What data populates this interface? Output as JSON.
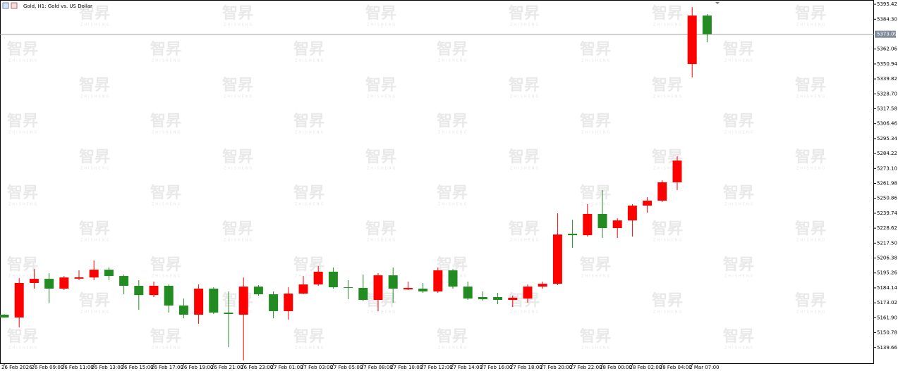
{
  "chart_data": {
    "type": "candlestick",
    "title": "Gold, H1:  Gold vs. US Dollar",
    "watermark": "智昇",
    "watermark_sub": "ZHISHENG",
    "categories": [
      "26 Feb 2026",
      null,
      "26 Feb 09:00",
      null,
      "26 Feb 11:00",
      null,
      "26 Feb 13:00",
      null,
      "26 Feb 15:00",
      null,
      "26 Feb 17:00",
      null,
      "26 Feb 19:00",
      null,
      "26 Feb 21:00",
      null,
      "26 Feb 23:00",
      null,
      "27 Feb 01:00",
      null,
      "27 Feb 03:00",
      null,
      "27 Feb 05:00",
      null,
      "27 Feb 08:00",
      null,
      "27 Feb 10:00",
      null,
      "27 Feb 12:00",
      null,
      "27 Feb 14:00",
      null,
      "27 Feb 16:00",
      null,
      "27 Feb 18:00",
      null,
      "27 Feb 20:00",
      null,
      "27 Feb 22:00",
      null,
      "28 Feb 00:00",
      null,
      "28 Feb 02:00",
      null,
      "28 Feb 04:00",
      null,
      "2 Mar 07:00",
      null
    ],
    "open": [
      5164.2,
      5162.1,
      5187.8,
      5190.9,
      5183.6,
      5191.0,
      5191.9,
      5197.7,
      5193.0,
      5185.7,
      5178.8,
      5185.7,
      5171.0,
      5164.2,
      5183.6,
      5165.7,
      5164.2,
      5185.1,
      5179.4,
      5166.8,
      5179.9,
      5186.7,
      5196.2,
      5184.6,
      5184.1,
      5175.2,
      5193.5,
      5183.0,
      5183.6,
      5181.5,
      5197.2,
      5185.1,
      5177.3,
      5177.3,
      5175.2,
      5176.2,
      5185.1,
      5187.2,
      5224.5,
      5223.4,
      5239.2,
      5228.7,
      5234.4,
      5245.4,
      5249.1,
      5262.8,
      5350.9,
      5387.0
    ],
    "high": [
      5164.5,
      5191.4,
      5198.2,
      5195.1,
      5193.0,
      5197.2,
      5204.6,
      5199.3,
      5194.1,
      5189.9,
      5188.8,
      5186.7,
      5176.2,
      5186.7,
      5184.6,
      5181.5,
      5191.9,
      5186.2,
      5181.5,
      5184.6,
      5193.0,
      5200.4,
      5199.3,
      5189.9,
      5194.1,
      5195.1,
      5199.3,
      5188.8,
      5187.8,
      5199.3,
      5198.2,
      5188.8,
      5181.5,
      5180.4,
      5178.3,
      5186.7,
      5188.8,
      5239.7,
      5234.9,
      5246.5,
      5257.0,
      5236.0,
      5246.5,
      5251.7,
      5264.3,
      5282.2,
      5393.3,
      5388.1
    ],
    "low": [
      5161.8,
      5154.7,
      5183.6,
      5173.1,
      5182.5,
      5189.9,
      5189.9,
      5189.9,
      5179.4,
      5167.8,
      5177.3,
      5165.7,
      5161.5,
      5157.3,
      5164.7,
      5140.0,
      5130.1,
      5178.3,
      5161.5,
      5160.5,
      5179.4,
      5185.7,
      5183.6,
      5175.7,
      5174.1,
      5166.8,
      5173.1,
      5182.5,
      5180.4,
      5180.4,
      5183.6,
      5175.2,
      5174.6,
      5172.0,
      5169.9,
      5173.1,
      5183.6,
      5186.2,
      5214.0,
      5222.4,
      5221.3,
      5221.3,
      5222.4,
      5240.2,
      5248.1,
      5257.0,
      5340.9,
      5367.1
    ],
    "close": [
      5162.1,
      5187.8,
      5190.9,
      5183.6,
      5191.9,
      5192.0,
      5197.7,
      5193.0,
      5185.7,
      5178.8,
      5185.7,
      5171.0,
      5164.2,
      5183.6,
      5165.7,
      5164.7,
      5185.1,
      5179.4,
      5166.8,
      5179.9,
      5186.7,
      5196.2,
      5184.6,
      5184.1,
      5175.2,
      5193.5,
      5183.6,
      5184.1,
      5181.5,
      5197.2,
      5185.1,
      5176.2,
      5175.7,
      5175.2,
      5176.8,
      5185.1,
      5187.2,
      5223.9,
      5223.4,
      5239.2,
      5228.7,
      5234.4,
      5245.4,
      5249.1,
      5262.8,
      5279.0,
      5387.0,
      5373.09
    ],
    "up_color": "#ff0000",
    "down_color": "#228b22",
    "last_price": 5373.09,
    "ylim": [
      5128.0,
      5398.6
    ],
    "yticks": [
      5395.42,
      {
        "value": 5384.3,
        "label": "5384.30"
      },
      5362.06,
      5350.94,
      5339.82,
      {
        "value": 5328.7,
        "label": "5328.70"
      },
      5317.58,
      5306.46,
      5295.34,
      5284.22,
      {
        "value": 5273.1,
        "label": "5273.10"
      },
      5261.98,
      5250.86,
      5239.74,
      5228.62,
      {
        "value": 5217.5,
        "label": "5217.50"
      },
      5206.38,
      5195.26,
      5184.14,
      5173.02,
      {
        "value": 5161.9,
        "label": "5161.90"
      },
      5150.78,
      5139.66
    ]
  }
}
